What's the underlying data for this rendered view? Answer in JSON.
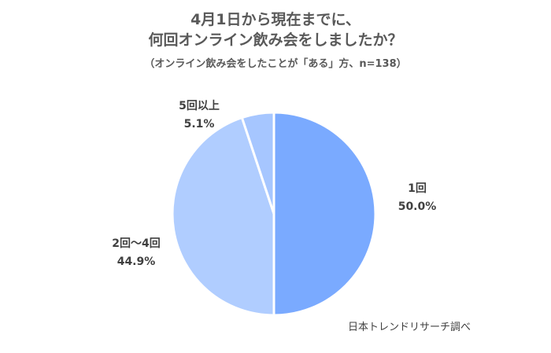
{
  "chart_data": {
    "type": "pie",
    "title_line1": "4月1日から現在までに、",
    "title_line2": "何回オンライン飲み会をしましたか？",
    "subtitle": "（オンライン飲み会をしたことが「ある」方、n=138）",
    "slices": [
      {
        "label": "1回",
        "value": 50.0,
        "display": "50.0%",
        "color": "#7aaaff"
      },
      {
        "label": "2回～4回",
        "value": 44.9,
        "display": "44.9%",
        "color": "#b0cdff"
      },
      {
        "label": "5回以上",
        "value": 5.1,
        "display": "5.1%",
        "color": "#a6c6ff"
      }
    ],
    "start_angle": "12 o'clock",
    "direction": "clockwise",
    "source": "日本トレンドリサーチ調べ"
  }
}
